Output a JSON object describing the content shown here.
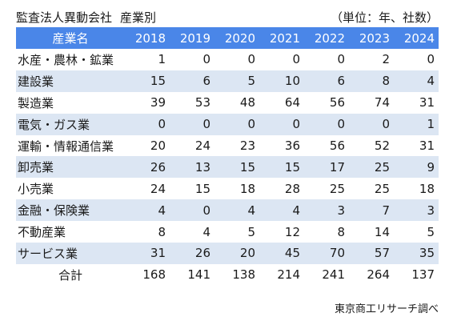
{
  "title": "監査法人異動会社",
  "subtitle": "産業別",
  "unit": "（単位：年、社数）",
  "columns": {
    "label": "産業名",
    "years": [
      "2018",
      "2019",
      "2020",
      "2021",
      "2022",
      "2023",
      "2024"
    ]
  },
  "rows": [
    {
      "label": "水産・農林・鉱業",
      "values": [
        "1",
        "0",
        "0",
        "0",
        "0",
        "2",
        "0"
      ]
    },
    {
      "label": "建設業",
      "values": [
        "15",
        "6",
        "5",
        "10",
        "6",
        "8",
        "4"
      ]
    },
    {
      "label": "製造業",
      "values": [
        "39",
        "53",
        "48",
        "64",
        "56",
        "74",
        "31"
      ]
    },
    {
      "label": "電気・ガス業",
      "values": [
        "0",
        "0",
        "0",
        "0",
        "0",
        "0",
        "1"
      ]
    },
    {
      "label": "運輸・情報通信業",
      "values": [
        "20",
        "24",
        "23",
        "36",
        "56",
        "52",
        "31"
      ]
    },
    {
      "label": "卸売業",
      "values": [
        "26",
        "13",
        "15",
        "15",
        "17",
        "25",
        "9"
      ]
    },
    {
      "label": "小売業",
      "values": [
        "24",
        "15",
        "18",
        "28",
        "25",
        "25",
        "18"
      ]
    },
    {
      "label": "金融・保険業",
      "values": [
        "4",
        "0",
        "4",
        "4",
        "3",
        "7",
        "3"
      ]
    },
    {
      "label": "不動産業",
      "values": [
        "8",
        "4",
        "5",
        "12",
        "8",
        "14",
        "5"
      ]
    },
    {
      "label": "サービス業",
      "values": [
        "31",
        "26",
        "20",
        "45",
        "70",
        "57",
        "35"
      ]
    },
    {
      "label": "合計",
      "values": [
        "168",
        "141",
        "138",
        "214",
        "241",
        "264",
        "137"
      ]
    }
  ],
  "source": "東京商工リサーチ調べ",
  "colors": {
    "header_bg": "#4a86e8",
    "stripe_bg": "#dce6f3"
  }
}
